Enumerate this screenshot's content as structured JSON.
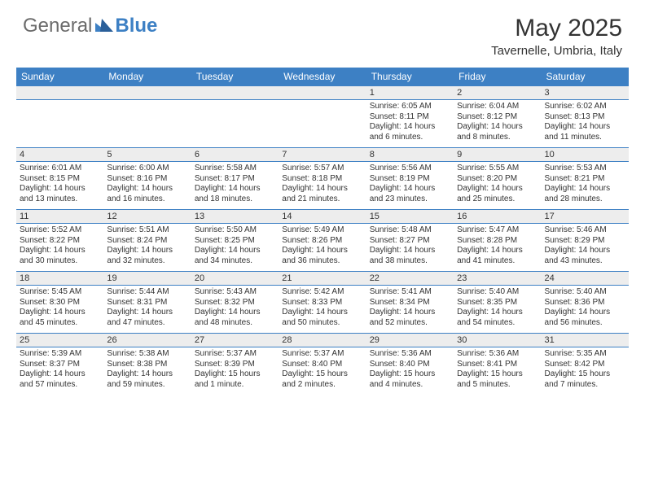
{
  "logo": {
    "text1": "General",
    "text2": "Blue"
  },
  "title": "May 2025",
  "location": "Tavernelle, Umbria, Italy",
  "colors": {
    "header_bg": "#3d80c4",
    "header_text": "#ffffff",
    "daynum_bg": "#ededed",
    "border": "#3d80c4",
    "body_text": "#333333",
    "logo_gray": "#6b6b6b",
    "logo_blue": "#3d80c4",
    "page_bg": "#ffffff"
  },
  "day_headers": [
    "Sunday",
    "Monday",
    "Tuesday",
    "Wednesday",
    "Thursday",
    "Friday",
    "Saturday"
  ],
  "weeks": [
    [
      null,
      null,
      null,
      null,
      {
        "n": "1",
        "sr": "Sunrise: 6:05 AM",
        "ss": "Sunset: 8:11 PM",
        "dl": "Daylight: 14 hours and 6 minutes."
      },
      {
        "n": "2",
        "sr": "Sunrise: 6:04 AM",
        "ss": "Sunset: 8:12 PM",
        "dl": "Daylight: 14 hours and 8 minutes."
      },
      {
        "n": "3",
        "sr": "Sunrise: 6:02 AM",
        "ss": "Sunset: 8:13 PM",
        "dl": "Daylight: 14 hours and 11 minutes."
      }
    ],
    [
      {
        "n": "4",
        "sr": "Sunrise: 6:01 AM",
        "ss": "Sunset: 8:15 PM",
        "dl": "Daylight: 14 hours and 13 minutes."
      },
      {
        "n": "5",
        "sr": "Sunrise: 6:00 AM",
        "ss": "Sunset: 8:16 PM",
        "dl": "Daylight: 14 hours and 16 minutes."
      },
      {
        "n": "6",
        "sr": "Sunrise: 5:58 AM",
        "ss": "Sunset: 8:17 PM",
        "dl": "Daylight: 14 hours and 18 minutes."
      },
      {
        "n": "7",
        "sr": "Sunrise: 5:57 AM",
        "ss": "Sunset: 8:18 PM",
        "dl": "Daylight: 14 hours and 21 minutes."
      },
      {
        "n": "8",
        "sr": "Sunrise: 5:56 AM",
        "ss": "Sunset: 8:19 PM",
        "dl": "Daylight: 14 hours and 23 minutes."
      },
      {
        "n": "9",
        "sr": "Sunrise: 5:55 AM",
        "ss": "Sunset: 8:20 PM",
        "dl": "Daylight: 14 hours and 25 minutes."
      },
      {
        "n": "10",
        "sr": "Sunrise: 5:53 AM",
        "ss": "Sunset: 8:21 PM",
        "dl": "Daylight: 14 hours and 28 minutes."
      }
    ],
    [
      {
        "n": "11",
        "sr": "Sunrise: 5:52 AM",
        "ss": "Sunset: 8:22 PM",
        "dl": "Daylight: 14 hours and 30 minutes."
      },
      {
        "n": "12",
        "sr": "Sunrise: 5:51 AM",
        "ss": "Sunset: 8:24 PM",
        "dl": "Daylight: 14 hours and 32 minutes."
      },
      {
        "n": "13",
        "sr": "Sunrise: 5:50 AM",
        "ss": "Sunset: 8:25 PM",
        "dl": "Daylight: 14 hours and 34 minutes."
      },
      {
        "n": "14",
        "sr": "Sunrise: 5:49 AM",
        "ss": "Sunset: 8:26 PM",
        "dl": "Daylight: 14 hours and 36 minutes."
      },
      {
        "n": "15",
        "sr": "Sunrise: 5:48 AM",
        "ss": "Sunset: 8:27 PM",
        "dl": "Daylight: 14 hours and 38 minutes."
      },
      {
        "n": "16",
        "sr": "Sunrise: 5:47 AM",
        "ss": "Sunset: 8:28 PM",
        "dl": "Daylight: 14 hours and 41 minutes."
      },
      {
        "n": "17",
        "sr": "Sunrise: 5:46 AM",
        "ss": "Sunset: 8:29 PM",
        "dl": "Daylight: 14 hours and 43 minutes."
      }
    ],
    [
      {
        "n": "18",
        "sr": "Sunrise: 5:45 AM",
        "ss": "Sunset: 8:30 PM",
        "dl": "Daylight: 14 hours and 45 minutes."
      },
      {
        "n": "19",
        "sr": "Sunrise: 5:44 AM",
        "ss": "Sunset: 8:31 PM",
        "dl": "Daylight: 14 hours and 47 minutes."
      },
      {
        "n": "20",
        "sr": "Sunrise: 5:43 AM",
        "ss": "Sunset: 8:32 PM",
        "dl": "Daylight: 14 hours and 48 minutes."
      },
      {
        "n": "21",
        "sr": "Sunrise: 5:42 AM",
        "ss": "Sunset: 8:33 PM",
        "dl": "Daylight: 14 hours and 50 minutes."
      },
      {
        "n": "22",
        "sr": "Sunrise: 5:41 AM",
        "ss": "Sunset: 8:34 PM",
        "dl": "Daylight: 14 hours and 52 minutes."
      },
      {
        "n": "23",
        "sr": "Sunrise: 5:40 AM",
        "ss": "Sunset: 8:35 PM",
        "dl": "Daylight: 14 hours and 54 minutes."
      },
      {
        "n": "24",
        "sr": "Sunrise: 5:40 AM",
        "ss": "Sunset: 8:36 PM",
        "dl": "Daylight: 14 hours and 56 minutes."
      }
    ],
    [
      {
        "n": "25",
        "sr": "Sunrise: 5:39 AM",
        "ss": "Sunset: 8:37 PM",
        "dl": "Daylight: 14 hours and 57 minutes."
      },
      {
        "n": "26",
        "sr": "Sunrise: 5:38 AM",
        "ss": "Sunset: 8:38 PM",
        "dl": "Daylight: 14 hours and 59 minutes."
      },
      {
        "n": "27",
        "sr": "Sunrise: 5:37 AM",
        "ss": "Sunset: 8:39 PM",
        "dl": "Daylight: 15 hours and 1 minute."
      },
      {
        "n": "28",
        "sr": "Sunrise: 5:37 AM",
        "ss": "Sunset: 8:40 PM",
        "dl": "Daylight: 15 hours and 2 minutes."
      },
      {
        "n": "29",
        "sr": "Sunrise: 5:36 AM",
        "ss": "Sunset: 8:40 PM",
        "dl": "Daylight: 15 hours and 4 minutes."
      },
      {
        "n": "30",
        "sr": "Sunrise: 5:36 AM",
        "ss": "Sunset: 8:41 PM",
        "dl": "Daylight: 15 hours and 5 minutes."
      },
      {
        "n": "31",
        "sr": "Sunrise: 5:35 AM",
        "ss": "Sunset: 8:42 PM",
        "dl": "Daylight: 15 hours and 7 minutes."
      }
    ]
  ]
}
